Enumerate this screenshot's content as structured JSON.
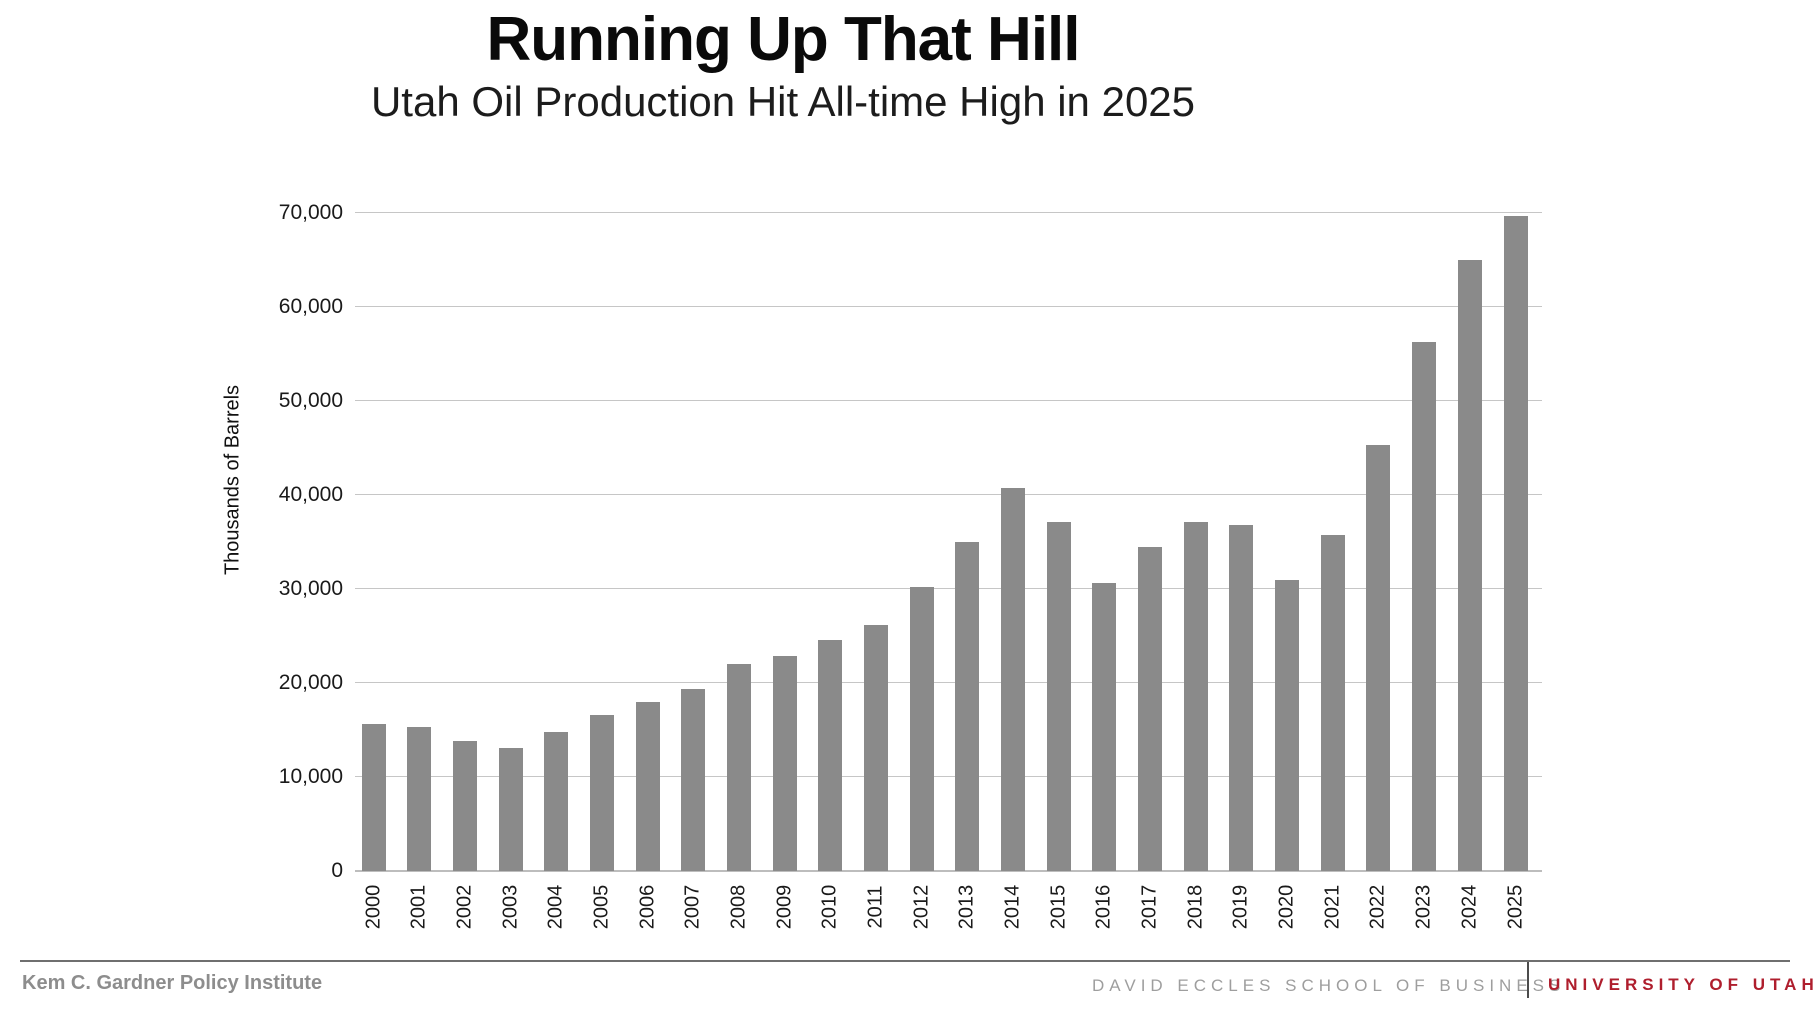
{
  "header": {
    "title": "Running Up That Hill",
    "subtitle": "Utah Oil Production Hit All-time High in 2025"
  },
  "chart_data": {
    "type": "bar",
    "title": "Running Up That Hill",
    "subtitle": "Utah Oil Production Hit All-time High in 2025",
    "xlabel": "",
    "ylabel": "Thousands of Barrels",
    "ylim": [
      0,
      70000
    ],
    "grid": true,
    "bar_color": "#8a8a8a",
    "yticks": [
      0,
      10000,
      20000,
      30000,
      40000,
      50000,
      60000,
      70000
    ],
    "ytick_labels": [
      "0",
      "10,000",
      "20,000",
      "30,000",
      "40,000",
      "50,000",
      "60,000",
      "70,000"
    ],
    "categories": [
      "2000",
      "2001",
      "2002",
      "2003",
      "2004",
      "2005",
      "2006",
      "2007",
      "2008",
      "2009",
      "2010",
      "2011",
      "2012",
      "2013",
      "2014",
      "2015",
      "2016",
      "2017",
      "2018",
      "2019",
      "2020",
      "2021",
      "2022",
      "2023",
      "2024",
      "2025"
    ],
    "values": [
      15600,
      15300,
      13800,
      13100,
      14800,
      16600,
      18000,
      19400,
      22000,
      22900,
      24600,
      26200,
      30200,
      35000,
      40800,
      37100,
      30600,
      34500,
      37100,
      36800,
      31000,
      35700,
      45300,
      56300,
      65000,
      69700
    ]
  },
  "footer": {
    "left_text": "Kem C. Gardner Policy Institute",
    "school_text": "DAVID ECCLES SCHOOL OF BUSINESS",
    "university_text": "UNIVERSITY OF UTAH",
    "university_color": "#af1e2d"
  }
}
